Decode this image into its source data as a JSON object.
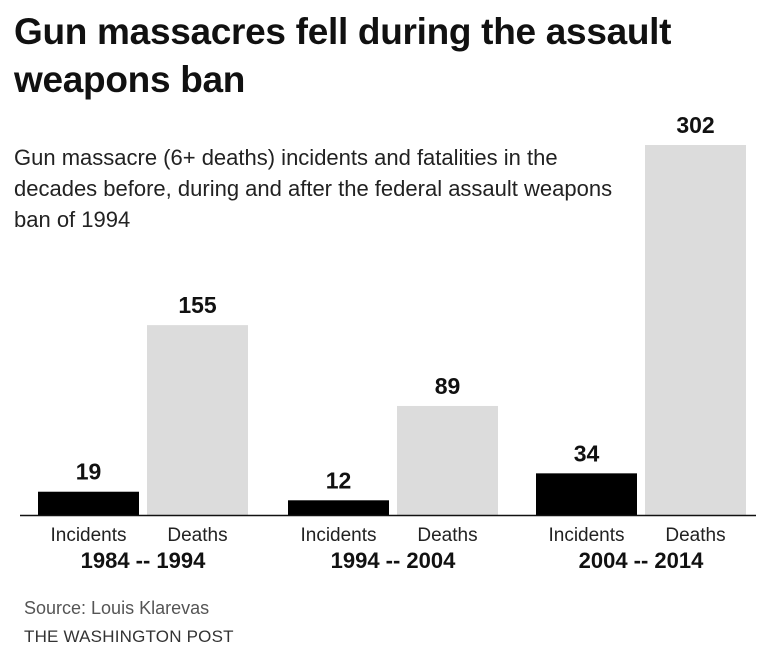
{
  "title": "Gun massacres fell during the assault weapons ban",
  "subtitle": "Gun massacre (6+ deaths) incidents and fatalities in the decades before, during and after the federal assault weapons ban of 1994",
  "source": "Source: Louis Klarevas",
  "credit": "THE WASHINGTON POST",
  "colors": {
    "incidents": "#000000",
    "deaths": "#dcdcdc"
  },
  "chart_data": {
    "type": "bar",
    "title": "Gun massacres fell during the assault weapons ban",
    "categories": [
      "1984 -- 1994",
      "1994 -- 2004",
      "2004 -- 2014"
    ],
    "bar_labels": [
      "Incidents",
      "Deaths"
    ],
    "series": [
      {
        "name": "Incidents",
        "values": [
          19,
          12,
          34
        ]
      },
      {
        "name": "Deaths",
        "values": [
          155,
          89,
          302
        ]
      }
    ],
    "ylim": [
      0,
      302
    ],
    "grid": false,
    "legend": "none"
  }
}
